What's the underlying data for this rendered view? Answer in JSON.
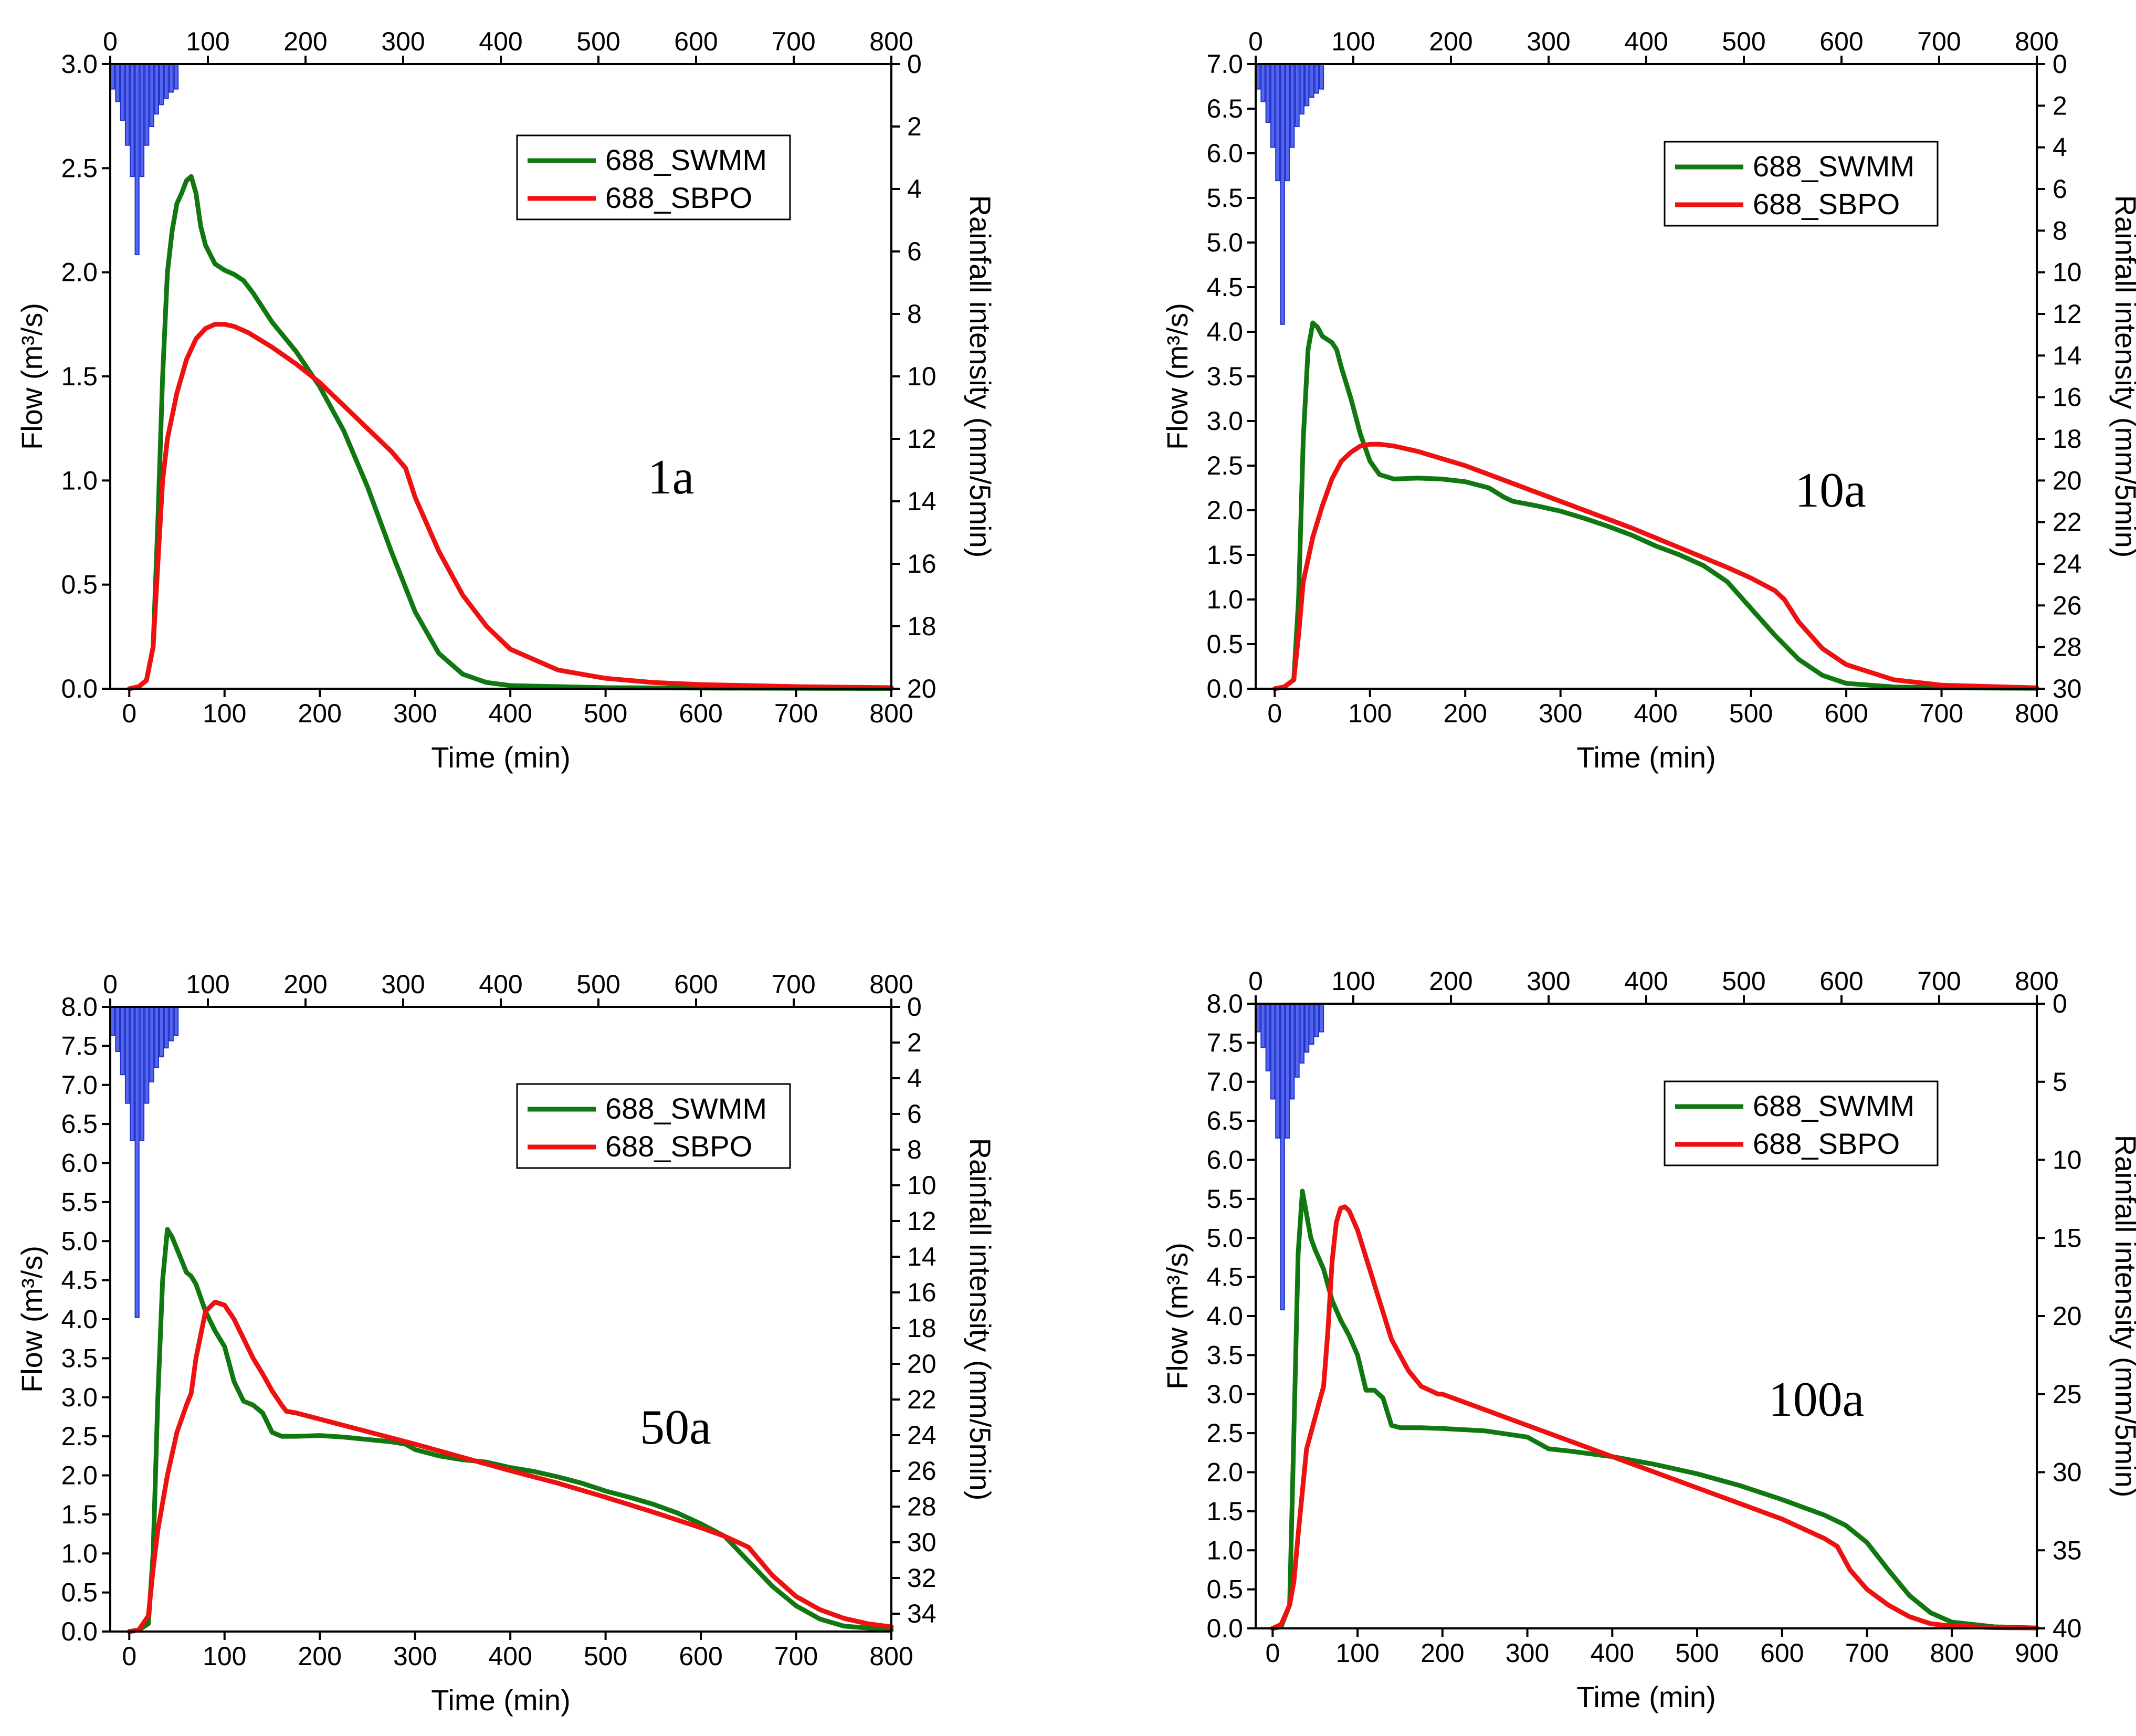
{
  "chart_data": [
    {
      "type": "line",
      "panel_label": "1a",
      "xlabel": "Time (min)",
      "ylabel": "Flow (m³/s)",
      "y2label": "Rainfall intensity (mm/5min)",
      "xlim": [
        -20,
        800
      ],
      "x_ticks": [
        0,
        100,
        200,
        300,
        400,
        500,
        600,
        700,
        800
      ],
      "top_xlim": [
        0,
        800
      ],
      "top_x_ticks": [
        0,
        100,
        200,
        300,
        400,
        500,
        600,
        700,
        800
      ],
      "ylim": [
        0,
        3.0
      ],
      "y_ticks": [
        "0.0",
        "0.5",
        "1.0",
        "1.5",
        "2.0",
        "2.5",
        "3.0"
      ],
      "y2lim": [
        0,
        20
      ],
      "y2_ticks": [
        0,
        2,
        4,
        6,
        8,
        10,
        12,
        14,
        16,
        18,
        20
      ],
      "legend": [
        "688_SWMM",
        "688_SBPO"
      ],
      "rainfall": {
        "interval_min": 5,
        "intensity": [
          0.8,
          1.2,
          1.8,
          2.6,
          3.6,
          6.1,
          3.6,
          2.6,
          2.0,
          1.6,
          1.3,
          1.1,
          0.9,
          0.8
        ]
      },
      "series": [
        {
          "name": "688_SWMM",
          "color": "#117711",
          "x": [
            0,
            10,
            18,
            25,
            30,
            35,
            40,
            45,
            50,
            55,
            60,
            65,
            70,
            75,
            80,
            90,
            100,
            110,
            120,
            130,
            150,
            175,
            200,
            225,
            250,
            275,
            300,
            325,
            350,
            375,
            400,
            450,
            500,
            600,
            700,
            800
          ],
          "y": [
            0.0,
            0.01,
            0.04,
            0.2,
            0.8,
            1.5,
            2.0,
            2.2,
            2.33,
            2.38,
            2.44,
            2.46,
            2.38,
            2.22,
            2.13,
            2.04,
            2.01,
            1.99,
            1.96,
            1.9,
            1.76,
            1.62,
            1.45,
            1.24,
            0.97,
            0.66,
            0.37,
            0.17,
            0.07,
            0.03,
            0.015,
            0.01,
            0.005,
            0.003,
            0.002,
            0.001
          ]
        },
        {
          "name": "688_SBPO",
          "color": "#ee1111",
          "x": [
            0,
            10,
            18,
            25,
            30,
            35,
            40,
            50,
            60,
            70,
            80,
            90,
            100,
            110,
            125,
            150,
            175,
            200,
            225,
            250,
            275,
            290,
            300,
            325,
            350,
            375,
            400,
            450,
            500,
            550,
            600,
            700,
            800
          ],
          "y": [
            0.0,
            0.01,
            0.04,
            0.2,
            0.6,
            1.0,
            1.2,
            1.42,
            1.58,
            1.68,
            1.73,
            1.75,
            1.75,
            1.74,
            1.71,
            1.64,
            1.56,
            1.47,
            1.36,
            1.25,
            1.14,
            1.06,
            0.92,
            0.66,
            0.45,
            0.3,
            0.19,
            0.09,
            0.05,
            0.03,
            0.02,
            0.01,
            0.005
          ]
        }
      ]
    },
    {
      "type": "line",
      "panel_label": "10a",
      "xlabel": "Time (min)",
      "ylabel": "Flow (m³/s)",
      "y2label": "Rainfall intensity (mm/5min)",
      "xlim": [
        -20,
        800
      ],
      "x_ticks": [
        0,
        100,
        200,
        300,
        400,
        500,
        600,
        700,
        800
      ],
      "top_xlim": [
        0,
        800
      ],
      "top_x_ticks": [
        0,
        100,
        200,
        300,
        400,
        500,
        600,
        700,
        800
      ],
      "ylim": [
        0,
        7.0
      ],
      "y_ticks": [
        "0.0",
        "0.5",
        "1.0",
        "1.5",
        "2.0",
        "2.5",
        "3.0",
        "3.5",
        "4.0",
        "4.5",
        "5.0",
        "5.5",
        "6.0",
        "6.5",
        "7.0"
      ],
      "y2lim": [
        0,
        30
      ],
      "y2_ticks": [
        0,
        2,
        4,
        6,
        8,
        10,
        12,
        14,
        16,
        18,
        20,
        22,
        24,
        26,
        28,
        30
      ],
      "legend": [
        "688_SWMM",
        "688_SBPO"
      ],
      "rainfall": {
        "interval_min": 5,
        "intensity": [
          1.2,
          1.8,
          2.8,
          4.0,
          5.6,
          12.5,
          5.6,
          4.0,
          3.0,
          2.4,
          2.0,
          1.6,
          1.4,
          1.2
        ]
      },
      "series": [
        {
          "name": "688_SWMM",
          "color": "#117711",
          "x": [
            0,
            10,
            20,
            25,
            30,
            35,
            40,
            45,
            50,
            60,
            65,
            70,
            80,
            90,
            100,
            110,
            125,
            150,
            175,
            200,
            225,
            240,
            250,
            275,
            300,
            325,
            350,
            375,
            400,
            425,
            450,
            475,
            500,
            525,
            550,
            575,
            600,
            650,
            700,
            800
          ],
          "y": [
            0.0,
            0.02,
            0.1,
            1.0,
            2.8,
            3.8,
            4.1,
            4.05,
            3.95,
            3.88,
            3.8,
            3.6,
            3.25,
            2.85,
            2.55,
            2.4,
            2.35,
            2.36,
            2.35,
            2.32,
            2.25,
            2.15,
            2.1,
            2.05,
            1.99,
            1.91,
            1.82,
            1.72,
            1.6,
            1.5,
            1.38,
            1.2,
            0.9,
            0.6,
            0.33,
            0.15,
            0.06,
            0.02,
            0.01,
            0.005
          ]
        },
        {
          "name": "688_SBPO",
          "color": "#ee1111",
          "x": [
            0,
            10,
            20,
            25,
            30,
            40,
            50,
            60,
            70,
            80,
            90,
            100,
            110,
            125,
            150,
            175,
            200,
            225,
            250,
            275,
            300,
            325,
            350,
            375,
            400,
            425,
            450,
            475,
            500,
            525,
            535,
            550,
            575,
            600,
            650,
            700,
            800
          ],
          "y": [
            0.0,
            0.02,
            0.1,
            0.6,
            1.2,
            1.7,
            2.05,
            2.35,
            2.55,
            2.65,
            2.72,
            2.74,
            2.74,
            2.72,
            2.66,
            2.58,
            2.5,
            2.4,
            2.3,
            2.2,
            2.1,
            2.0,
            1.9,
            1.8,
            1.69,
            1.58,
            1.47,
            1.36,
            1.24,
            1.1,
            1.0,
            0.75,
            0.45,
            0.27,
            0.1,
            0.04,
            0.01
          ]
        }
      ]
    },
    {
      "type": "line",
      "panel_label": "50a",
      "xlabel": "Time (min)",
      "ylabel": "Flow (m³/s)",
      "y2label": "Rainfall intensity (mm/5min)",
      "xlim": [
        -20,
        800
      ],
      "x_ticks": [
        0,
        100,
        200,
        300,
        400,
        500,
        600,
        700,
        800
      ],
      "top_xlim": [
        0,
        800
      ],
      "top_x_ticks": [
        0,
        100,
        200,
        300,
        400,
        500,
        600,
        700,
        800
      ],
      "ylim": [
        0,
        8.0
      ],
      "y_ticks": [
        "0.0",
        "0.5",
        "1.0",
        "1.5",
        "2.0",
        "2.5",
        "3.0",
        "3.5",
        "4.0",
        "4.5",
        "5.0",
        "5.5",
        "6.0",
        "6.5",
        "7.0",
        "7.5",
        "8.0"
      ],
      "y2lim": [
        0,
        35
      ],
      "y2_ticks": [
        0,
        2,
        4,
        6,
        8,
        10,
        12,
        14,
        16,
        18,
        20,
        22,
        24,
        26,
        28,
        30,
        32,
        34
      ],
      "legend": [
        "688_SWMM",
        "688_SBPO"
      ],
      "rainfall": {
        "interval_min": 5,
        "intensity": [
          1.6,
          2.5,
          3.8,
          5.4,
          7.5,
          17.4,
          7.5,
          5.4,
          4.2,
          3.4,
          2.8,
          2.3,
          1.9,
          1.6
        ]
      },
      "series": [
        {
          "name": "688_SWMM",
          "color": "#117711",
          "x": [
            0,
            10,
            20,
            25,
            30,
            35,
            40,
            45,
            50,
            55,
            60,
            65,
            70,
            80,
            90,
            100,
            110,
            120,
            130,
            140,
            150,
            160,
            175,
            200,
            225,
            250,
            275,
            290,
            300,
            325,
            350,
            375,
            400,
            425,
            450,
            475,
            500,
            525,
            550,
            575,
            600,
            625,
            650,
            675,
            700,
            725,
            750,
            800
          ],
          "y": [
            0.0,
            0.02,
            0.1,
            1.0,
            3.0,
            4.5,
            5.15,
            5.05,
            4.9,
            4.75,
            4.6,
            4.55,
            4.45,
            4.1,
            3.85,
            3.65,
            3.2,
            2.95,
            2.9,
            2.8,
            2.55,
            2.5,
            2.5,
            2.51,
            2.49,
            2.46,
            2.43,
            2.4,
            2.33,
            2.25,
            2.2,
            2.17,
            2.1,
            2.05,
            1.98,
            1.9,
            1.8,
            1.72,
            1.63,
            1.52,
            1.38,
            1.22,
            0.9,
            0.58,
            0.33,
            0.16,
            0.07,
            0.02
          ]
        },
        {
          "name": "688_SBPO",
          "color": "#ee1111",
          "x": [
            0,
            10,
            20,
            25,
            30,
            40,
            50,
            60,
            65,
            70,
            80,
            90,
            100,
            110,
            120,
            130,
            140,
            150,
            160,
            165,
            175,
            200,
            250,
            300,
            350,
            400,
            450,
            500,
            550,
            600,
            625,
            650,
            675,
            700,
            725,
            750,
            775,
            800
          ],
          "y": [
            0.0,
            0.02,
            0.2,
            0.8,
            1.3,
            2.0,
            2.55,
            2.9,
            3.05,
            3.5,
            4.1,
            4.22,
            4.18,
            4.0,
            3.75,
            3.5,
            3.3,
            3.08,
            2.9,
            2.82,
            2.8,
            2.72,
            2.56,
            2.4,
            2.23,
            2.06,
            1.9,
            1.72,
            1.53,
            1.33,
            1.22,
            1.08,
            0.72,
            0.45,
            0.28,
            0.17,
            0.1,
            0.06
          ]
        }
      ]
    },
    {
      "type": "line",
      "panel_label": "100a",
      "xlabel": "Time (min)",
      "ylabel": "Flow (m³/s)",
      "y2label": "Rainfall intensity (mm/5min)",
      "xlim": [
        -20,
        900
      ],
      "x_ticks": [
        0,
        100,
        200,
        300,
        400,
        500,
        600,
        700,
        800,
        900
      ],
      "top_xlim": [
        0,
        800
      ],
      "top_x_ticks": [
        0,
        100,
        200,
        300,
        400,
        500,
        600,
        700,
        800
      ],
      "ylim": [
        0,
        8.0
      ],
      "y_ticks": [
        "0.0",
        "0.5",
        "1.0",
        "1.5",
        "2.0",
        "2.5",
        "3.0",
        "3.5",
        "4.0",
        "4.5",
        "5.0",
        "5.5",
        "6.0",
        "6.5",
        "7.0",
        "7.5",
        "8.0"
      ],
      "y2lim": [
        0,
        40
      ],
      "y2_ticks": [
        0,
        5,
        10,
        15,
        20,
        25,
        30,
        35,
        40
      ],
      "legend": [
        "688_SWMM",
        "688_SBPO"
      ],
      "rainfall": {
        "interval_min": 5,
        "intensity": [
          1.8,
          2.8,
          4.3,
          6.1,
          8.6,
          19.6,
          8.6,
          6.1,
          4.7,
          3.8,
          3.1,
          2.6,
          2.1,
          1.8
        ]
      },
      "series": [
        {
          "name": "688_SWMM",
          "color": "#117711",
          "x": [
            0,
            10,
            20,
            25,
            30,
            35,
            40,
            45,
            50,
            60,
            70,
            80,
            90,
            100,
            110,
            120,
            125,
            130,
            140,
            150,
            160,
            175,
            200,
            250,
            300,
            325,
            350,
            400,
            450,
            500,
            550,
            600,
            650,
            675,
            700,
            725,
            750,
            775,
            800,
            850,
            900
          ],
          "y": [
            0.0,
            0.02,
            0.3,
            2.5,
            4.8,
            5.6,
            5.3,
            5.0,
            4.85,
            4.6,
            4.2,
            3.95,
            3.75,
            3.5,
            3.05,
            3.05,
            3.0,
            2.95,
            2.6,
            2.57,
            2.57,
            2.57,
            2.56,
            2.53,
            2.45,
            2.3,
            2.27,
            2.2,
            2.1,
            1.98,
            1.83,
            1.65,
            1.45,
            1.32,
            1.1,
            0.75,
            0.42,
            0.2,
            0.08,
            0.02,
            0.005
          ]
        },
        {
          "name": "688_SBPO",
          "color": "#ee1111",
          "x": [
            0,
            10,
            20,
            25,
            30,
            40,
            50,
            55,
            60,
            65,
            70,
            75,
            80,
            85,
            90,
            100,
            120,
            140,
            160,
            175,
            195,
            200,
            250,
            300,
            350,
            400,
            450,
            500,
            550,
            600,
            650,
            665,
            680,
            700,
            725,
            750,
            775,
            800,
            850,
            900
          ],
          "y": [
            0.0,
            0.05,
            0.3,
            0.6,
            1.2,
            2.3,
            2.7,
            2.9,
            3.1,
            3.8,
            4.7,
            5.2,
            5.38,
            5.4,
            5.35,
            5.1,
            4.4,
            3.7,
            3.3,
            3.1,
            3.0,
            3.0,
            2.8,
            2.6,
            2.4,
            2.2,
            2.0,
            1.8,
            1.6,
            1.4,
            1.15,
            1.05,
            0.75,
            0.5,
            0.3,
            0.15,
            0.06,
            0.03,
            0.01,
            0.005
          ]
        }
      ]
    }
  ]
}
